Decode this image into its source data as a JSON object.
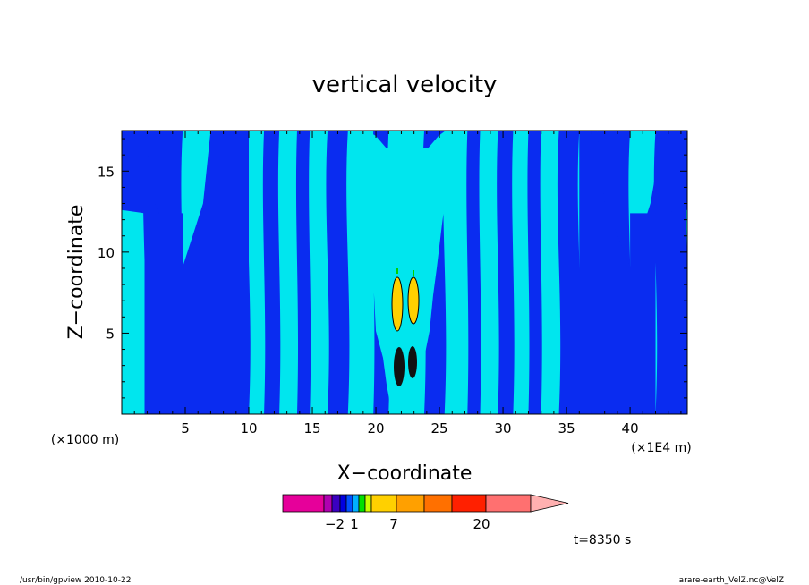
{
  "title": "vertical velocity",
  "x_unit_label": "(×1000 m)",
  "x_extra_label": "(×1E4 m)",
  "x_axis_title": "X−coordinate",
  "y_axis_title": "Z−coordinate",
  "time_label": "t=8350 s",
  "footer_left": "/usr/bin/gpview   2010-10-22",
  "footer_right": "arare-earth_VelZ.nc@VelZ",
  "chart_data": {
    "type": "heatmap",
    "title": "vertical velocity",
    "xlabel": "X−coordinate",
    "ylabel": "Z−coordinate",
    "xlim": [
      0,
      44.5
    ],
    "ylim": [
      0,
      17.5
    ],
    "x_ticks": [
      5,
      10,
      15,
      20,
      25,
      30,
      35,
      40
    ],
    "x_tick_labels": [
      "5",
      "10",
      "15",
      "20",
      "25",
      "30",
      "35",
      "40"
    ],
    "y_ticks": [
      5,
      10,
      15
    ],
    "y_tick_labels": [
      "5",
      "10",
      "15"
    ],
    "x_band_boundaries": [
      0,
      1.8,
      4.8,
      7.0,
      10.0,
      11.2,
      12.4,
      13.8,
      14.8,
      16.2,
      17.8,
      19.8,
      21.0,
      23.8,
      25.4,
      27.2,
      28.2,
      29.6,
      30.8,
      32.0,
      33.0,
      34.4,
      36.0,
      37.4,
      40.0,
      42.0,
      44.5
    ],
    "colorbar": {
      "colors": [
        "#e6009a",
        "#b000b0",
        "#3a00c0",
        "#0000e0",
        "#0050ff",
        "#00b0ff",
        "#00e000",
        "#c8ff00",
        "#ffd000",
        "#ffa000",
        "#ff7000",
        "#ff2000",
        "#ff7070",
        "#ffb0b0"
      ],
      "labels": [
        "−2",
        "1",
        "7",
        "20"
      ]
    },
    "grid": false
  }
}
